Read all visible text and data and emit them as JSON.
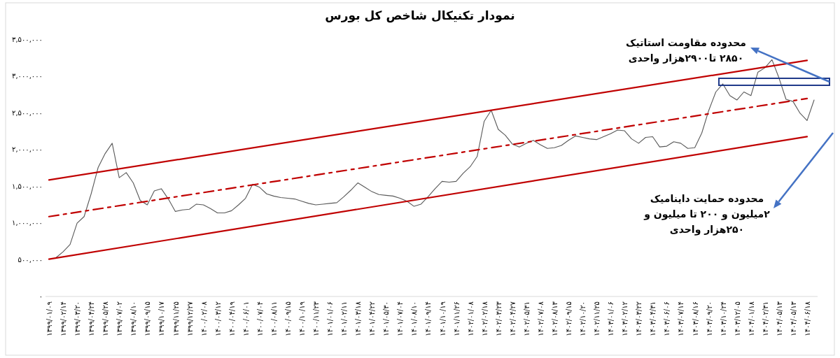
{
  "chart_data": {
    "type": "line",
    "title": "نمودار تکنیکال شاخص کل بورس",
    "categories": [
      "۱۳۹۹/۰۱/۰۹",
      null,
      "۱۳۹۹/۰۲/۱۴",
      null,
      "۱۳۹۹/۰۳/۲۰",
      null,
      "۱۳۹۹/۰۴/۲۴",
      null,
      "۱۳۹۹/۰۵/۲۸",
      null,
      "۱۳۹۹/۰۷/۰۲",
      null,
      "۱۳۹۹/۰۸/۱۰",
      null,
      "۱۳۹۹/۰۹/۱۵",
      null,
      "۱۳۹۹/۱۰/۱۷",
      null,
      "۱۳۹۹/۱۱/۲۵",
      null,
      "۱۳۹۹/۱۲/۲۷",
      null,
      "۱۴۰۰/۰۲/۰۸",
      null,
      "۱۴۰۰/۰۳/۱۲",
      null,
      "۱۴۰۰/۰۴/۱۹",
      null,
      "۱۴۰۰/۰۶/۰۱",
      null,
      "۱۴۰۰/۰۷/۰۴",
      null,
      "۱۴۰۰/۰۸/۱۱",
      null,
      "۱۴۰۰/۰۹/۱۵",
      null,
      "۱۴۰۰/۱۰/۱۹",
      null,
      "۱۴۰۰/۱۱/۲۳",
      null,
      "۱۴۰۱/۰۱/۰۶",
      null,
      "۱۴۰۱/۰۲/۱۱",
      null,
      "۱۴۰۱/۰۳/۱۸",
      null,
      "۱۴۰۱/۰۴/۲۲",
      null,
      "۱۴۰۱/۰۵/۳۰",
      null,
      "۱۴۰۱/۰۷/۰۴",
      null,
      "۱۴۰۱/۰۸/۱۰",
      null,
      "۱۴۰۱/۰۹/۱۴",
      null,
      "۱۴۰۱/۱۰/۱۹",
      null,
      "۱۴۰۱/۱۱/۲۶",
      null,
      "۱۴۰۲/۰۱/۰۸",
      null,
      "۱۴۰۲/۰۲/۱۸",
      null,
      "۱۴۰۲/۰۳/۲۳",
      null,
      "۱۴۰۲/۰۴/۲۷",
      null,
      "۱۴۰۲/۰۵/۳۱",
      null,
      "۱۴۰۲/۰۷/۰۸",
      null,
      "۱۴۰۲/۰۸/۱۳",
      null,
      "۱۴۰۲/۰۹/۱۵",
      null,
      "۱۴۰۲/۱۰/۲۰",
      null,
      "۱۴۰۲/۱۱/۲۵",
      null,
      "۱۴۰۳/۰۱/۰۶",
      null,
      "۱۴۰۳/۰۲/۱۲",
      null,
      "۱۴۰۳/۰۳/۲۲",
      null,
      "۱۴۰۳/۰۴/۳۱",
      null,
      "۱۴۰۳/۰۶/۰۶",
      null,
      "۱۴۰۳/۰۷/۱۴",
      null,
      "۱۴۰۳/۰۸/۱۶",
      null,
      "۱۴۰۳/۰۹/۲۰",
      null,
      "۱۴۰۳/۱۰/۲۴",
      null,
      "۱۴۰۳/۱۲/۰۵",
      null,
      "۱۴۰۴/۰۱/۱۸",
      null,
      "۱۴۰۴/۰۲/۳۱",
      null,
      "۱۴۰۴/۰۵/۱۳",
      null,
      "۱۴۰۴/۰۵/۱۳",
      null,
      "۱۴۰۴/۰۶/۱۸",
      null
    ],
    "series": [
      {
        "color": "#595959",
        "values": [
          null,
          520000,
          600000,
          700000,
          990000,
          1080000,
          1390000,
          1750000,
          1940000,
          2080000,
          1610000,
          1680000,
          1540000,
          1300000,
          1240000,
          1430000,
          1460000,
          1320000,
          1150000,
          1170000,
          1180000,
          1250000,
          1240000,
          1190000,
          1130000,
          1130000,
          1160000,
          1240000,
          1330000,
          1520000,
          1480000,
          1390000,
          1360000,
          1340000,
          1330000,
          1320000,
          1290000,
          1260000,
          1240000,
          1250000,
          1260000,
          1270000,
          1350000,
          1440000,
          1540000,
          1480000,
          1420000,
          1380000,
          1370000,
          1360000,
          1330000,
          1290000,
          1220000,
          1250000,
          1350000,
          1460000,
          1560000,
          1550000,
          1560000,
          1670000,
          1760000,
          1900000,
          2380000,
          2530000,
          2270000,
          2190000,
          2070000,
          2030000,
          2080000,
          2120000,
          2060000,
          2010000,
          2020000,
          2050000,
          2120000,
          2180000,
          2160000,
          2140000,
          2130000,
          2170000,
          2210000,
          2260000,
          2250000,
          2140000,
          2080000,
          2160000,
          2170000,
          2030000,
          2040000,
          2100000,
          2080000,
          2010000,
          2020000,
          2220000,
          2530000,
          2780000,
          2890000,
          2730000,
          2670000,
          2780000,
          2730000,
          3050000,
          3110000,
          3220000,
          2970000,
          2680000,
          2650000,
          2490000,
          2390000,
          2670000
        ]
      },
      {
        "type": "line",
        "x": [
          "۱۳۹۹/۰۱/۰۹",
          "۱۴۰۴/۰۶/۱۸"
        ],
        "values": [
          1580000,
          3210000
        ],
        "color": "#c00000"
      },
      {
        "type": "line",
        "x": [
          "۱۳۹۹/۰۱/۰۹",
          "۱۴۰۴/۰۶/۱۸"
        ],
        "values": [
          1080000,
          2690000
        ],
        "color": "#c00000",
        "line_style": "dashed"
      },
      {
        "type": "line",
        "x": [
          "۱۳۹۹/۰۱/۰۹",
          "۱۴۰۴/۰۶/۱۸"
        ],
        "values": [
          500000,
          2170000
        ],
        "color": "#c00000"
      }
    ],
    "ylim": [
      0,
      3500000
    ],
    "yticks": [
      {
        "value": 0,
        "label": "۰"
      },
      {
        "value": 500000,
        "label": "۵۰۰,۰۰۰"
      },
      {
        "value": 1000000,
        "label": "۱,۰۰۰,۰۰۰"
      },
      {
        "value": 1500000,
        "label": "۱,۵۰۰,۰۰۰"
      },
      {
        "value": 2000000,
        "label": "۲,۰۰۰,۰۰۰"
      },
      {
        "value": 2500000,
        "label": "۲,۵۰۰,۰۰۰"
      },
      {
        "value": 3000000,
        "label": "۳,۰۰۰,۰۰۰"
      },
      {
        "value": 3500000,
        "label": "۳,۵۰۰,۰۰۰"
      }
    ],
    "grid": false,
    "marker": "none",
    "annotations": [
      "محدوده مقاومت استاتیک\n۲۸۵۰ تا۲۹۰۰هزار واحدی",
      "محدوده حمایت داینامیک\n۲میلیون و ۲۰۰ تا میلیون و\n۲۵۰هزار واحدی"
    ]
  }
}
